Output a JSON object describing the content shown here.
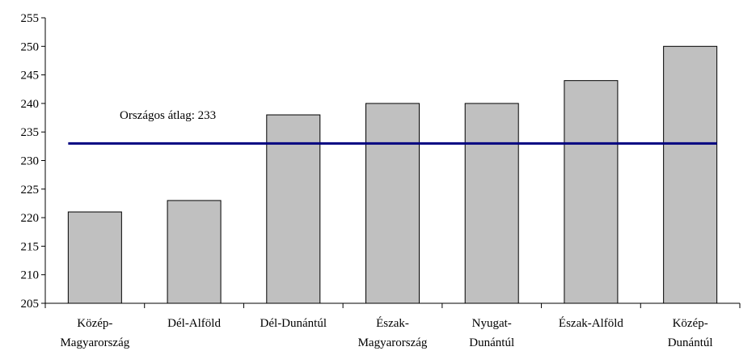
{
  "chart_data": {
    "type": "bar",
    "categories": [
      [
        "Közép-",
        "Magyarország"
      ],
      [
        "Dél-Alföld"
      ],
      [
        "Dél-Dunántúl"
      ],
      [
        "Észak-",
        "Magyarország"
      ],
      [
        "Nyugat-",
        "Dunántúl"
      ],
      [
        "Észak-Alföld"
      ],
      [
        "Közép-",
        "Dunántúl"
      ]
    ],
    "values": [
      221,
      223,
      238,
      240,
      240,
      244,
      250
    ],
    "ylim": [
      205,
      255
    ],
    "yticks": [
      205,
      210,
      215,
      220,
      225,
      230,
      235,
      240,
      245,
      250,
      255
    ],
    "grid": false,
    "bar_color": "#c0c0c0",
    "reference_line": {
      "value": 233,
      "label": "Országos átlag: 233",
      "color": "#000080"
    }
  }
}
